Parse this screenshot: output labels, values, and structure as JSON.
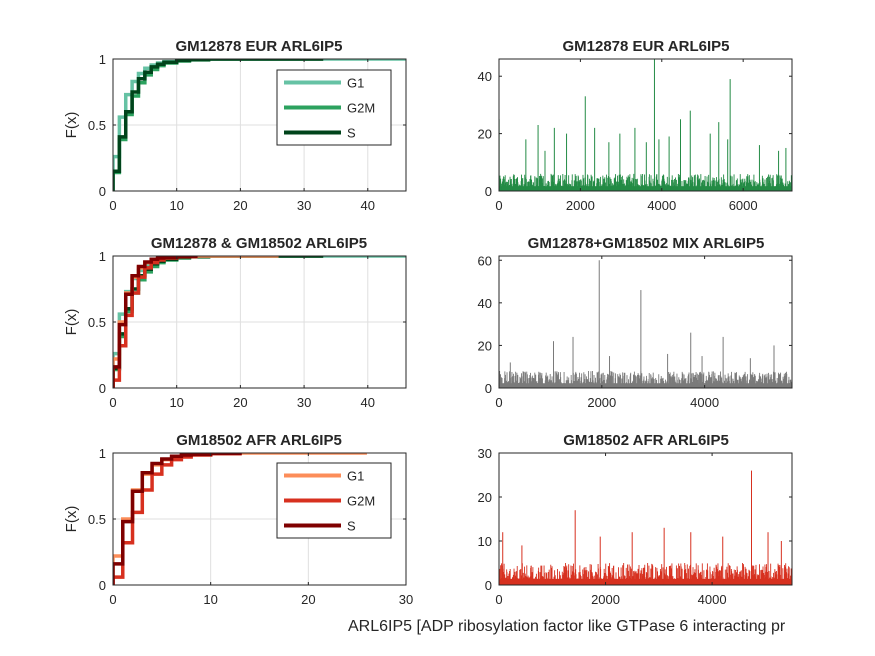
{
  "figure": {
    "xlabel": "ARL6IP5 [ADP ribosylation factor like GTPase 6 interacting pr"
  },
  "chart_data": [
    {
      "id": "p1",
      "type": "line",
      "subtype": "ecdf",
      "title": "GM12878 EUR ARL6IP5",
      "ylabel": "F(x)",
      "xlim": [
        0,
        46
      ],
      "ylim": [
        0,
        1
      ],
      "xticks": [
        0,
        10,
        20,
        30,
        40
      ],
      "yticks": [
        0,
        0.5,
        1
      ],
      "grid": true,
      "legend": "top-right",
      "series": [
        {
          "name": "G1",
          "color": "#66c2a4",
          "x": [
            0,
            1,
            2,
            3,
            4,
            5,
            6,
            7,
            8,
            10,
            12,
            15,
            46
          ],
          "y": [
            0.26,
            0.56,
            0.73,
            0.83,
            0.89,
            0.93,
            0.955,
            0.97,
            0.98,
            0.99,
            0.995,
            1.0,
            1.0
          ]
        },
        {
          "name": "G2M",
          "color": "#2ca25f",
          "x": [
            0,
            1,
            2,
            3,
            4,
            5,
            6,
            7,
            8,
            10,
            12,
            15,
            33
          ],
          "y": [
            0.14,
            0.39,
            0.58,
            0.72,
            0.82,
            0.88,
            0.92,
            0.95,
            0.97,
            0.985,
            0.993,
            1.0,
            1.0
          ]
        },
        {
          "name": "S",
          "color": "#00441b",
          "x": [
            0,
            1,
            2,
            3,
            4,
            5,
            6,
            7,
            8,
            10,
            12,
            15,
            33
          ],
          "y": [
            0.15,
            0.41,
            0.6,
            0.75,
            0.85,
            0.9,
            0.94,
            0.96,
            0.975,
            0.99,
            0.995,
            1.0,
            1.0
          ]
        }
      ]
    },
    {
      "id": "p2",
      "type": "bar",
      "subtype": "spikes",
      "title": "GM12878 EUR ARL6IP5",
      "xlim": [
        0,
        7200
      ],
      "ylim": [
        0,
        46
      ],
      "xticks": [
        0,
        2000,
        4000,
        6000
      ],
      "yticks": [
        0,
        20,
        40
      ],
      "grid": false,
      "color": "#238b45",
      "n": 7200,
      "base_max": 6,
      "peaks": [
        [
          3,
          25
        ],
        [
          660,
          18
        ],
        [
          960,
          23
        ],
        [
          1130,
          14
        ],
        [
          1360,
          22
        ],
        [
          1660,
          20
        ],
        [
          2120,
          33
        ],
        [
          2350,
          22
        ],
        [
          2700,
          17
        ],
        [
          2970,
          20
        ],
        [
          3340,
          22
        ],
        [
          3620,
          17
        ],
        [
          3820,
          46
        ],
        [
          3930,
          18
        ],
        [
          4180,
          19
        ],
        [
          4460,
          25
        ],
        [
          4700,
          28
        ],
        [
          5190,
          20
        ],
        [
          5400,
          24
        ],
        [
          5620,
          18
        ],
        [
          5680,
          39
        ],
        [
          6400,
          16
        ],
        [
          6870,
          14
        ],
        [
          7050,
          15
        ]
      ]
    },
    {
      "id": "p3",
      "type": "line",
      "subtype": "ecdf",
      "title": "GM12878 & GM18502 ARL6IP5",
      "ylabel": "F(x)",
      "xlim": [
        0,
        46
      ],
      "ylim": [
        0,
        1
      ],
      "xticks": [
        0,
        10,
        20,
        30,
        40
      ],
      "yticks": [
        0,
        0.5,
        1
      ],
      "grid": true,
      "series": [
        {
          "color": "#66c2a4",
          "x": [
            0,
            1,
            2,
            3,
            4,
            5,
            6,
            7,
            8,
            10,
            12,
            15,
            46
          ],
          "y": [
            0.26,
            0.56,
            0.73,
            0.83,
            0.89,
            0.93,
            0.955,
            0.97,
            0.98,
            0.99,
            0.995,
            1.0,
            1.0
          ]
        },
        {
          "color": "#2ca25f",
          "x": [
            0,
            1,
            2,
            3,
            4,
            5,
            6,
            7,
            8,
            10,
            12,
            15,
            33
          ],
          "y": [
            0.14,
            0.39,
            0.58,
            0.72,
            0.82,
            0.88,
            0.92,
            0.95,
            0.97,
            0.985,
            0.993,
            1.0,
            1.0
          ]
        },
        {
          "color": "#00441b",
          "x": [
            0,
            1,
            2,
            3,
            4,
            5,
            6,
            7,
            8,
            10,
            12,
            15,
            33
          ],
          "y": [
            0.15,
            0.41,
            0.6,
            0.75,
            0.85,
            0.9,
            0.94,
            0.96,
            0.975,
            0.99,
            0.995,
            1.0,
            1.0
          ]
        },
        {
          "color": "#fc8d59",
          "x": [
            0,
            1,
            2,
            3,
            4,
            5,
            6,
            7,
            8,
            10,
            13,
            26
          ],
          "y": [
            0.22,
            0.5,
            0.72,
            0.84,
            0.91,
            0.95,
            0.97,
            0.98,
            0.99,
            0.995,
            1.0,
            1.0
          ]
        },
        {
          "color": "#d7301f",
          "x": [
            0,
            1,
            2,
            3,
            4,
            5,
            6,
            7,
            8,
            10,
            13
          ],
          "y": [
            0.06,
            0.32,
            0.55,
            0.72,
            0.84,
            0.91,
            0.95,
            0.97,
            0.985,
            0.995,
            1.0
          ]
        },
        {
          "color": "#7f0000",
          "x": [
            0,
            1,
            2,
            3,
            4,
            5,
            6,
            7,
            8,
            10,
            13
          ],
          "y": [
            0.16,
            0.48,
            0.71,
            0.85,
            0.92,
            0.955,
            0.975,
            0.985,
            0.99,
            0.997,
            1.0
          ]
        }
      ]
    },
    {
      "id": "p4",
      "type": "bar",
      "subtype": "spikes",
      "title": "GM12878+GM18502 MIX ARL6IP5",
      "xlim": [
        0,
        5700
      ],
      "ylim": [
        0,
        62
      ],
      "xticks": [
        0,
        2000,
        4000
      ],
      "yticks": [
        0,
        20,
        40,
        60
      ],
      "grid": false,
      "color": "#7a7a7a",
      "n": 5700,
      "base_max": 8,
      "peaks": [
        [
          220,
          12
        ],
        [
          1060,
          22
        ],
        [
          1440,
          24
        ],
        [
          1950,
          60
        ],
        [
          2150,
          15
        ],
        [
          2760,
          46
        ],
        [
          3280,
          16
        ],
        [
          3730,
          26
        ],
        [
          3950,
          15
        ],
        [
          4360,
          24
        ],
        [
          4890,
          14
        ],
        [
          5350,
          20
        ]
      ]
    },
    {
      "id": "p5",
      "type": "line",
      "subtype": "ecdf",
      "title": "GM18502 AFR ARL6IP5",
      "ylabel": "F(x)",
      "xlim": [
        0,
        30
      ],
      "ylim": [
        0,
        1
      ],
      "xticks": [
        0,
        10,
        20,
        30
      ],
      "yticks": [
        0,
        0.5,
        1
      ],
      "grid": true,
      "legend": "top-right",
      "series": [
        {
          "name": "G1",
          "color": "#fc8d59",
          "x": [
            0,
            1,
            2,
            3,
            4,
            5,
            6,
            7,
            8,
            10,
            13,
            26
          ],
          "y": [
            0.22,
            0.5,
            0.72,
            0.84,
            0.91,
            0.95,
            0.97,
            0.98,
            0.99,
            0.995,
            1.0,
            1.0
          ]
        },
        {
          "name": "G2M",
          "color": "#d7301f",
          "x": [
            0,
            1,
            2,
            3,
            4,
            5,
            6,
            7,
            8,
            10,
            13
          ],
          "y": [
            0.06,
            0.32,
            0.55,
            0.72,
            0.84,
            0.91,
            0.95,
            0.97,
            0.985,
            0.995,
            1.0
          ]
        },
        {
          "name": "S",
          "color": "#7f0000",
          "x": [
            0,
            1,
            2,
            3,
            4,
            5,
            6,
            7,
            8,
            10,
            13
          ],
          "y": [
            0.16,
            0.48,
            0.71,
            0.85,
            0.92,
            0.955,
            0.975,
            0.985,
            0.99,
            0.997,
            1.0
          ]
        }
      ]
    },
    {
      "id": "p6",
      "type": "bar",
      "subtype": "spikes",
      "title": "GM18502 AFR ARL6IP5",
      "xlim": [
        0,
        5500
      ],
      "ylim": [
        0,
        30
      ],
      "xticks": [
        0,
        2000,
        4000
      ],
      "yticks": [
        0,
        10,
        20,
        30
      ],
      "grid": false,
      "color": "#d7301f",
      "n": 5500,
      "base_max": 5,
      "peaks": [
        [
          70,
          12
        ],
        [
          430,
          9
        ],
        [
          1430,
          17
        ],
        [
          1900,
          11
        ],
        [
          2500,
          12
        ],
        [
          3100,
          13
        ],
        [
          3600,
          12
        ],
        [
          4200,
          11
        ],
        [
          4740,
          26
        ],
        [
          5050,
          12
        ],
        [
          5300,
          10
        ]
      ]
    }
  ]
}
